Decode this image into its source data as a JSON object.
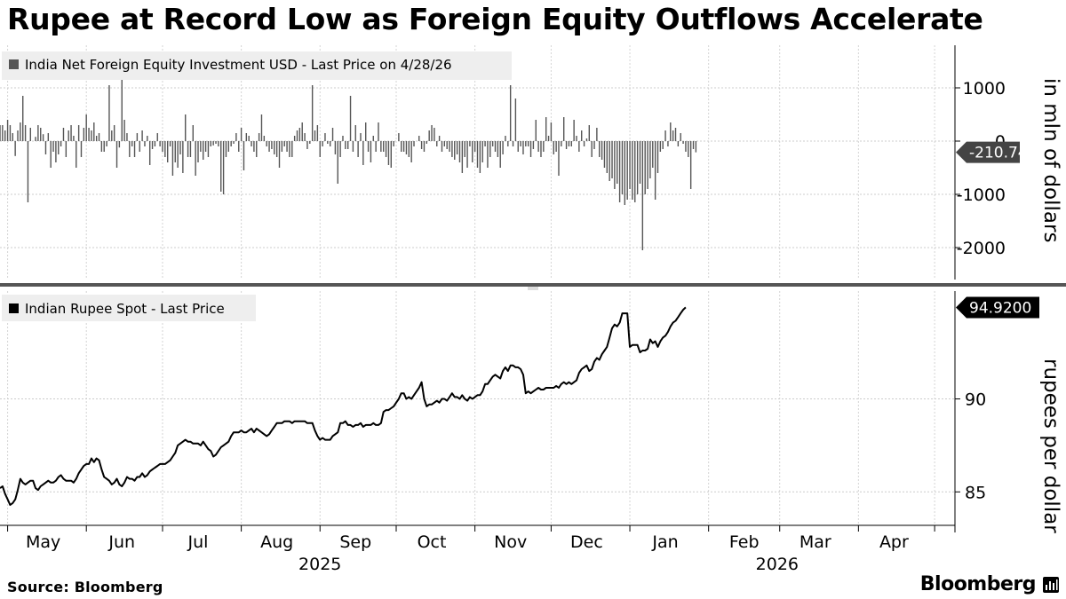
{
  "title": "Rupee at Record Low as Foreign Equity Outflows Accelerate",
  "source": "Source: Bloomberg",
  "brand": "Bloomberg",
  "colors": {
    "bars": "#555555",
    "line": "#000000",
    "grid": "#cccccc",
    "badge_top": "#444444",
    "badge_bottom": "#000000"
  },
  "chart_data": [
    {
      "type": "bar",
      "legend": "India Net Foreign Equity Investment USD - Last Price on 4/28/26",
      "ylabel": "in mln of dollars",
      "ylim": [
        -2600,
        1800
      ],
      "yticks": [
        {
          "value": 1000,
          "label": "1000"
        },
        {
          "value": 0,
          "label": "0"
        },
        {
          "value": -1000,
          "label": "-1000"
        },
        {
          "value": -2000,
          "label": "-2000"
        }
      ],
      "last_label": "-210.74",
      "last_value": -210.74,
      "grid": true,
      "x_start": "2025-04-28",
      "x_step_days": 1,
      "values": [
        300,
        300,
        200,
        400,
        300,
        150,
        -280,
        200,
        350,
        850,
        300,
        -1150,
        250,
        0,
        80,
        300,
        250,
        130,
        -250,
        150,
        -500,
        -200,
        -400,
        -250,
        -100,
        250,
        -300,
        200,
        300,
        100,
        -500,
        300,
        -300,
        250,
        500,
        250,
        200,
        350,
        100,
        150,
        -200,
        -200,
        -100,
        1050,
        200,
        300,
        -500,
        -120,
        1250,
        400,
        150,
        -300,
        -100,
        -300,
        150,
        -200,
        200,
        -100,
        100,
        -450,
        -150,
        -100,
        150,
        -100,
        -200,
        -300,
        -400,
        -100,
        -650,
        -400,
        -500,
        -250,
        -600,
        500,
        -300,
        -300,
        300,
        -650,
        -400,
        -200,
        -350,
        -200,
        -300,
        -100,
        -80,
        -50,
        -100,
        -950,
        -1000,
        -300,
        -200,
        -100,
        -50,
        150,
        -200,
        250,
        -550,
        150,
        100,
        -100,
        -200,
        -300,
        150,
        500,
        100,
        -100,
        -200,
        -150,
        -250,
        -300,
        -500,
        -200,
        -100,
        -200,
        -300,
        -300,
        100,
        200,
        250,
        350,
        150,
        -150,
        -50,
        1050,
        200,
        300,
        -300,
        -100,
        150,
        -50,
        -100,
        250,
        -250,
        -800,
        -300,
        100,
        -150,
        -150,
        850,
        -200,
        300,
        -300,
        150,
        -450,
        350,
        -200,
        -400,
        100,
        -200,
        350,
        -200,
        -200,
        -300,
        -450,
        -500,
        -100,
        0,
        150,
        -200,
        -200,
        -250,
        -300,
        -400,
        -100,
        0,
        100,
        -150,
        -200,
        -50,
        200,
        300,
        250,
        -100,
        100,
        -200,
        -100,
        -150,
        -200,
        -300,
        -350,
        -250,
        -400,
        -600,
        -300,
        -500,
        -100,
        -400,
        -200,
        -500,
        -600,
        -400,
        -100,
        -500,
        -300,
        -100,
        -200,
        -300,
        -500,
        -250,
        100,
        -100,
        1050,
        -100,
        800,
        -200,
        -100,
        -250,
        -100,
        -100,
        -300,
        -150,
        400,
        -200,
        -300,
        -200,
        450,
        100,
        350,
        -250,
        -200,
        -650,
        -100,
        450,
        -150,
        -100,
        -100,
        400,
        100,
        -200,
        200,
        -100,
        50,
        300,
        -300,
        -150,
        250,
        -300,
        -350,
        -500,
        -600,
        -750,
        -700,
        -900,
        -800,
        -1150,
        -1000,
        -1200,
        -1100,
        -900,
        -1100,
        -1150,
        -1000,
        -800,
        -2050,
        -1000,
        -900,
        -700,
        -500,
        -1100,
        -600,
        -200,
        -150,
        200,
        -100,
        350,
        200,
        250,
        -100,
        150,
        -50,
        -200,
        -300,
        -900,
        -150,
        -210.74
      ]
    },
    {
      "type": "line",
      "legend": "Indian Rupee Spot - Last Price",
      "ylabel": "rupees per dollar",
      "ylim": [
        83.2,
        95.8
      ],
      "yticks": [
        {
          "value": 90,
          "label": "90"
        },
        {
          "value": 85,
          "label": "85"
        }
      ],
      "last_label": "94.9200",
      "last_value": 94.92,
      "grid": true,
      "x_start": "2025-04-28",
      "x_step_days": 1,
      "values": [
        85.2,
        85.3,
        84.9,
        84.6,
        84.3,
        84.4,
        84.6,
        85.1,
        85.7,
        85.5,
        85.4,
        85.5,
        85.6,
        85.6,
        85.2,
        85.1,
        85.3,
        85.4,
        85.5,
        85.6,
        85.5,
        85.5,
        85.6,
        85.8,
        85.9,
        85.7,
        85.6,
        85.6,
        85.6,
        85.5,
        85.7,
        86.0,
        86.2,
        86.4,
        86.5,
        86.5,
        86.8,
        86.6,
        86.8,
        86.7,
        86.2,
        85.8,
        85.7,
        85.6,
        85.4,
        85.5,
        85.7,
        85.4,
        85.3,
        85.5,
        85.8,
        85.7,
        85.7,
        85.6,
        85.8,
        85.8,
        86.0,
        85.8,
        85.9,
        86.1,
        86.2,
        86.3,
        86.4,
        86.5,
        86.5,
        86.5,
        86.6,
        86.7,
        86.9,
        87.1,
        87.5,
        87.6,
        87.7,
        87.8,
        87.7,
        87.7,
        87.6,
        87.6,
        87.6,
        87.5,
        87.7,
        87.5,
        87.3,
        87.2,
        86.9,
        87.0,
        87.2,
        87.4,
        87.5,
        87.6,
        87.7,
        88.0,
        88.2,
        88.2,
        88.2,
        88.3,
        88.2,
        88.2,
        88.3,
        88.4,
        88.2,
        88.4,
        88.3,
        88.2,
        88.1,
        88.0,
        88.1,
        88.3,
        88.5,
        88.7,
        88.7,
        88.7,
        88.8,
        88.8,
        88.8,
        88.7,
        88.8,
        88.8,
        88.8,
        88.8,
        88.8,
        88.7,
        88.7,
        88.7,
        88.3,
        88.0,
        87.8,
        87.9,
        87.8,
        87.8,
        87.8,
        88.0,
        88.1,
        88.2,
        88.7,
        88.7,
        88.8,
        88.6,
        88.6,
        88.5,
        88.6,
        88.6,
        88.7,
        88.5,
        88.6,
        88.6,
        88.6,
        88.7,
        88.6,
        88.6,
        88.7,
        89.3,
        89.4,
        89.4,
        89.5,
        89.6,
        89.8,
        90.0,
        90.3,
        90.3,
        90.0,
        90.1,
        90.0,
        90.2,
        90.4,
        90.6,
        90.9,
        90.0,
        89.6,
        89.7,
        89.7,
        89.8,
        89.9,
        89.8,
        90.0,
        90.0,
        89.9,
        90.1,
        90.3,
        90.1,
        90.1,
        90.0,
        90.2,
        90.0,
        89.9,
        90.1,
        90.0,
        90.1,
        90.2,
        90.2,
        90.4,
        90.8,
        90.8,
        91.0,
        91.2,
        91.3,
        91.2,
        91.1,
        91.5,
        91.7,
        91.5,
        91.8,
        91.8,
        91.7,
        91.7,
        91.6,
        91.3,
        90.3,
        90.4,
        90.3,
        90.4,
        90.5,
        90.6,
        90.5,
        90.5,
        90.6,
        90.6,
        90.6,
        90.6,
        90.7,
        90.6,
        90.8,
        90.9,
        90.8,
        90.9,
        90.8,
        90.9,
        91.0,
        91.4,
        91.6,
        91.7,
        91.8,
        91.5,
        91.6,
        92.0,
        92.2,
        92.1,
        92.4,
        92.6,
        92.8,
        93.3,
        93.8,
        94.0,
        93.9,
        94.1,
        94.6,
        94.6,
        94.6,
        92.8,
        92.9,
        92.9,
        92.9,
        92.5,
        92.6,
        92.6,
        92.7,
        93.2,
        93.0,
        93.1,
        92.8,
        93.1,
        93.3,
        93.4,
        93.6,
        93.9,
        94.1,
        94.2,
        94.4,
        94.6,
        94.8,
        94.92
      ]
    }
  ],
  "x_axis": {
    "months": [
      {
        "label": "May",
        "date": "2025-05-15"
      },
      {
        "label": "Jun",
        "date": "2025-06-15"
      },
      {
        "label": "Jul",
        "date": "2025-07-15"
      },
      {
        "label": "Aug",
        "date": "2025-08-15"
      },
      {
        "label": "Sep",
        "date": "2025-09-15"
      },
      {
        "label": "Oct",
        "date": "2025-10-15"
      },
      {
        "label": "Nov",
        "date": "2025-11-15"
      },
      {
        "label": "Dec",
        "date": "2025-12-15"
      },
      {
        "label": "Jan",
        "date": "2026-01-15"
      },
      {
        "label": "Feb",
        "date": "2026-02-15"
      },
      {
        "label": "Mar",
        "date": "2026-03-15"
      },
      {
        "label": "Apr",
        "date": "2026-04-15"
      }
    ],
    "years": [
      {
        "label": "2025",
        "date": "2025-09-01"
      },
      {
        "label": "2026",
        "date": "2026-02-28"
      }
    ],
    "range": [
      "2025-04-28",
      "2026-05-09"
    ]
  }
}
